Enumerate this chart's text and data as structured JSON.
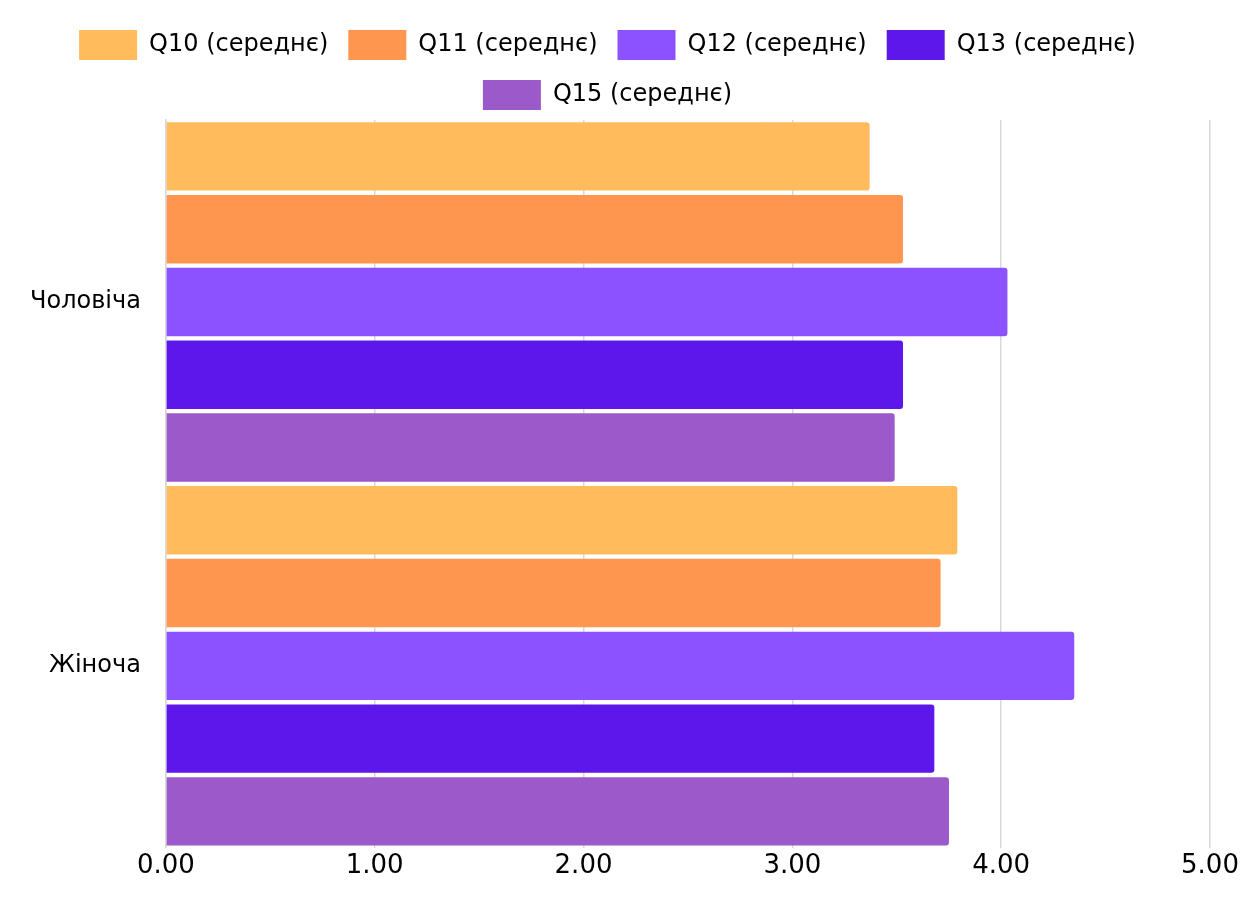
{
  "chart_data": {
    "type": "bar",
    "orientation": "horizontal",
    "categories": [
      "Чоловіча",
      "Жіноча"
    ],
    "series": [
      {
        "name": "Q10 (середнє)",
        "color": "#ffbb5c",
        "values": [
          3.37,
          3.79
        ]
      },
      {
        "name": "Q11 (середнє)",
        "color": "#ff9650",
        "values": [
          3.53,
          3.71
        ]
      },
      {
        "name": "Q12 (середнє)",
        "color": "#8c52ff",
        "values": [
          4.03,
          4.35
        ]
      },
      {
        "name": "Q13 (середнє)",
        "color": "#5e17eb",
        "values": [
          3.53,
          3.68
        ]
      },
      {
        "name": "Q15 (середнє)",
        "color": "#9b59c9",
        "values": [
          3.49,
          3.75
        ]
      }
    ],
    "xlim": [
      0,
      5
    ],
    "xticks": [
      {
        "value": 0,
        "label": "0.00"
      },
      {
        "value": 1,
        "label": "1.00"
      },
      {
        "value": 2,
        "label": "2.00"
      },
      {
        "value": 3,
        "label": "3.00"
      },
      {
        "value": 4,
        "label": "4.00"
      },
      {
        "value": 5,
        "label": "5.00"
      }
    ],
    "grid": "x",
    "legend": "top"
  }
}
